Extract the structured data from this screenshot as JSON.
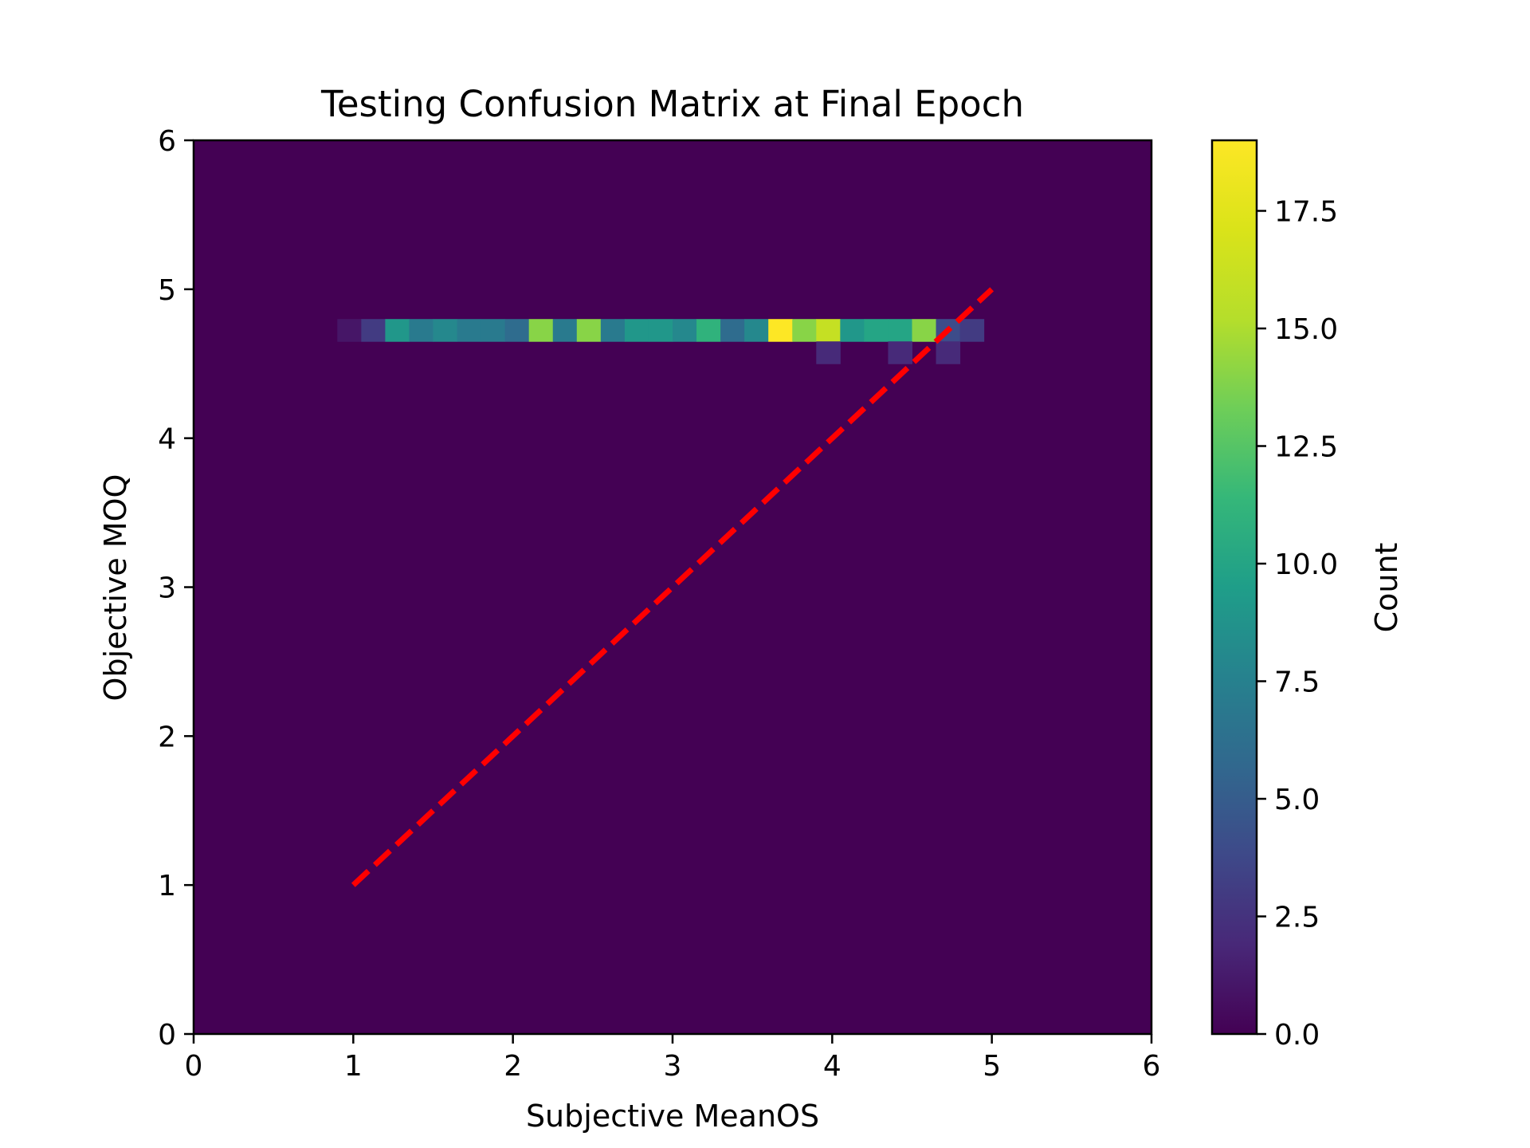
{
  "chart_data": {
    "type": "heatmap",
    "title": "Testing Confusion Matrix at Final Epoch",
    "xlabel": "Subjective MeanOS",
    "ylabel": "Objective MOQ",
    "xlim": [
      0,
      6
    ],
    "ylim": [
      0,
      6
    ],
    "xticks": [
      0,
      1,
      2,
      3,
      4,
      5,
      6
    ],
    "yticks": [
      0,
      1,
      2,
      3,
      4,
      5,
      6
    ],
    "grid": false,
    "bin_width": 0.15,
    "background_value": 0,
    "cells": [
      {
        "x": [
          0.9,
          1.05
        ],
        "y": [
          4.65,
          4.8
        ],
        "count": 1
      },
      {
        "x": [
          1.05,
          1.2
        ],
        "y": [
          4.65,
          4.8
        ],
        "count": 3
      },
      {
        "x": [
          1.2,
          1.35
        ],
        "y": [
          4.65,
          4.8
        ],
        "count": 9
      },
      {
        "x": [
          1.35,
          1.5
        ],
        "y": [
          4.65,
          4.8
        ],
        "count": 7
      },
      {
        "x": [
          1.5,
          1.65
        ],
        "y": [
          4.65,
          4.8
        ],
        "count": 8
      },
      {
        "x": [
          1.65,
          1.8
        ],
        "y": [
          4.65,
          4.8
        ],
        "count": 7
      },
      {
        "x": [
          1.8,
          1.95
        ],
        "y": [
          4.65,
          4.8
        ],
        "count": 7
      },
      {
        "x": [
          1.95,
          2.1
        ],
        "y": [
          4.65,
          4.8
        ],
        "count": 6
      },
      {
        "x": [
          2.1,
          2.25
        ],
        "y": [
          4.65,
          4.8
        ],
        "count": 14
      },
      {
        "x": [
          2.25,
          2.4
        ],
        "y": [
          4.65,
          4.8
        ],
        "count": 7
      },
      {
        "x": [
          2.4,
          2.55
        ],
        "y": [
          4.65,
          4.8
        ],
        "count": 14
      },
      {
        "x": [
          2.55,
          2.7
        ],
        "y": [
          4.65,
          4.8
        ],
        "count": 7
      },
      {
        "x": [
          2.7,
          2.85
        ],
        "y": [
          4.65,
          4.8
        ],
        "count": 9
      },
      {
        "x": [
          2.85,
          3.0
        ],
        "y": [
          4.65,
          4.8
        ],
        "count": 9
      },
      {
        "x": [
          3.0,
          3.15
        ],
        "y": [
          4.65,
          4.8
        ],
        "count": 8
      },
      {
        "x": [
          3.15,
          3.3
        ],
        "y": [
          4.65,
          4.8
        ],
        "count": 11
      },
      {
        "x": [
          3.3,
          3.45
        ],
        "y": [
          4.65,
          4.8
        ],
        "count": 6
      },
      {
        "x": [
          3.45,
          3.6
        ],
        "y": [
          4.65,
          4.8
        ],
        "count": 8
      },
      {
        "x": [
          3.6,
          3.75
        ],
        "y": [
          4.65,
          4.8
        ],
        "count": 19
      },
      {
        "x": [
          3.75,
          3.9
        ],
        "y": [
          4.65,
          4.8
        ],
        "count": 14
      },
      {
        "x": [
          3.9,
          4.05
        ],
        "y": [
          4.65,
          4.8
        ],
        "count": 16
      },
      {
        "x": [
          4.05,
          4.2
        ],
        "y": [
          4.65,
          4.8
        ],
        "count": 9
      },
      {
        "x": [
          4.2,
          4.35
        ],
        "y": [
          4.65,
          4.8
        ],
        "count": 10
      },
      {
        "x": [
          4.35,
          4.5
        ],
        "y": [
          4.65,
          4.8
        ],
        "count": 10
      },
      {
        "x": [
          4.5,
          4.65
        ],
        "y": [
          4.65,
          4.8
        ],
        "count": 14
      },
      {
        "x": [
          4.65,
          4.8
        ],
        "y": [
          4.65,
          4.8
        ],
        "count": 4
      },
      {
        "x": [
          4.8,
          4.95
        ],
        "y": [
          4.65,
          4.8
        ],
        "count": 3
      },
      {
        "x": [
          3.9,
          4.05
        ],
        "y": [
          4.5,
          4.65
        ],
        "count": 2
      },
      {
        "x": [
          4.35,
          4.5
        ],
        "y": [
          4.5,
          4.65
        ],
        "count": 2
      },
      {
        "x": [
          4.65,
          4.8
        ],
        "y": [
          4.5,
          4.65
        ],
        "count": 2
      }
    ],
    "reference_line": {
      "x": [
        1,
        5
      ],
      "y": [
        1,
        5
      ],
      "color": "#ff0000",
      "style": "dashed"
    },
    "colorbar": {
      "label": "Count",
      "colormap": "viridis",
      "range": [
        0,
        19
      ],
      "ticks": [
        "0.0",
        "2.5",
        "5.0",
        "7.5",
        "10.0",
        "12.5",
        "15.0",
        "17.5"
      ]
    }
  }
}
